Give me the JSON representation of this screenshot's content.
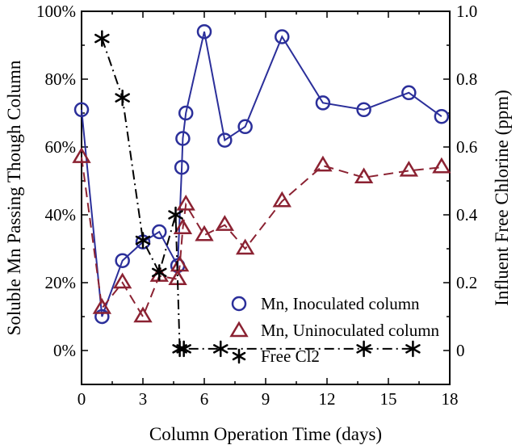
{
  "chart_data": {
    "type": "line",
    "xlabel": "Column Operation Time (days)",
    "ylabel_left": "Soluble Mn Passing Though Column",
    "ylabel_right": "Influent Free Chlorine (ppm)",
    "xlim": [
      0,
      18
    ],
    "ylim_left": [
      -0.1,
      1.0
    ],
    "ylim_right": [
      -0.1,
      1.0
    ],
    "x_ticks": [
      {
        "value": 0,
        "label": "0"
      },
      {
        "value": 3,
        "label": "3"
      },
      {
        "value": 6,
        "label": "6"
      },
      {
        "value": 9,
        "label": "9"
      },
      {
        "value": 12,
        "label": "12"
      },
      {
        "value": 15,
        "label": "15"
      },
      {
        "value": 18,
        "label": "18"
      }
    ],
    "y_left_ticks": [
      {
        "value": 0,
        "label": "0%"
      },
      {
        "value": 0.2,
        "label": "20%"
      },
      {
        "value": 0.4,
        "label": "40%"
      },
      {
        "value": 0.6,
        "label": "60%"
      },
      {
        "value": 0.8,
        "label": "80%"
      },
      {
        "value": 1.0,
        "label": "100%"
      }
    ],
    "y_right_ticks": [
      {
        "value": 0,
        "label": "0"
      },
      {
        "value": 0.2,
        "label": "0.2"
      },
      {
        "value": 0.4,
        "label": "0.4"
      },
      {
        "value": 0.6,
        "label": "0.6"
      },
      {
        "value": 0.8,
        "label": "0.8"
      },
      {
        "value": 1.0,
        "label": "1.0"
      }
    ],
    "legend_placement": "bottom-right",
    "series": [
      {
        "name": "Mn, Inoculated column",
        "marker": "circle",
        "line": "solid",
        "color": "#2b2f9a",
        "axis": "left",
        "x": [
          0,
          1,
          2,
          3,
          3.8,
          4.7,
          4.9,
          4.95,
          5.1,
          6,
          7,
          8,
          9.8,
          11.8,
          13.8,
          16,
          17.6
        ],
        "y": [
          0.71,
          0.1,
          0.265,
          0.32,
          0.35,
          0.25,
          0.54,
          0.625,
          0.7,
          0.94,
          0.62,
          0.66,
          0.925,
          0.73,
          0.71,
          0.76,
          0.69
        ]
      },
      {
        "name": "Mn, Uninoculated column",
        "marker": "triangle",
        "line": "dashed",
        "color": "#8b2232",
        "axis": "left",
        "x": [
          0,
          1,
          2,
          3,
          3.8,
          4.7,
          4.8,
          4.95,
          5.1,
          6,
          7,
          8,
          9.8,
          11.8,
          13.8,
          16,
          17.6
        ],
        "y": [
          0.57,
          0.125,
          0.2,
          0.1,
          0.22,
          0.21,
          0.25,
          0.36,
          0.43,
          0.34,
          0.37,
          0.3,
          0.44,
          0.545,
          0.51,
          0.53,
          0.54
        ]
      },
      {
        "name": "Free Cl2",
        "marker": "asterisk",
        "line": "dashdot",
        "color": "#000000",
        "axis": "right",
        "x": [
          1,
          2,
          3,
          3.8,
          4.6,
          4.8,
          5.0,
          6.8,
          13.8,
          16.2
        ],
        "y": [
          0.92,
          0.745,
          0.325,
          0.23,
          0.4,
          0.005,
          0.005,
          0.005,
          0.005,
          0.005
        ]
      }
    ]
  }
}
